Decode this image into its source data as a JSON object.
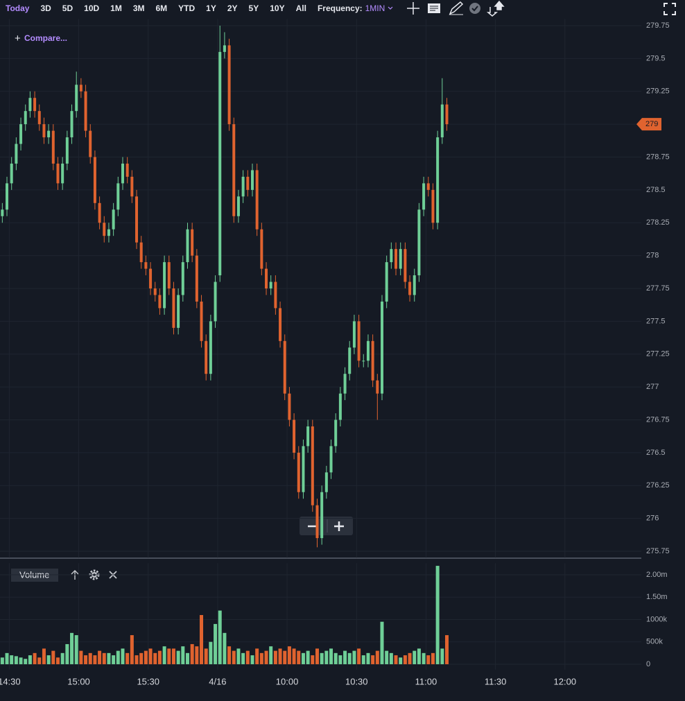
{
  "toolbar": {
    "ranges": [
      "Today",
      "3D",
      "5D",
      "10D",
      "1M",
      "3M",
      "6M",
      "YTD",
      "1Y",
      "2Y",
      "5Y",
      "10Y",
      "All"
    ],
    "frequency_label": "Frequency:",
    "frequency": "1MIN"
  },
  "compare": "Compare...",
  "chart_data": [
    {
      "type": "candlestick",
      "up_color": "#6fcf97",
      "down_color": "#e0632f",
      "grid": true,
      "xlim": [
        -4,
        273
      ],
      "ylim": [
        275.7,
        279.8
      ],
      "yticks": [
        275.75,
        276,
        276.25,
        276.5,
        276.75,
        277,
        277.25,
        277.5,
        277.75,
        278,
        278.25,
        278.5,
        278.75,
        279,
        279.25,
        279.5,
        279.75
      ],
      "last_price": 279,
      "x": [
        -3,
        -1,
        1,
        3,
        5,
        7,
        9,
        11,
        13,
        15,
        17,
        19,
        21,
        23,
        25,
        27,
        29,
        31,
        33,
        35,
        37,
        39,
        41,
        43,
        45,
        47,
        49,
        51,
        53,
        55,
        57,
        59,
        61,
        63,
        65,
        67,
        69,
        71,
        73,
        75,
        77,
        79,
        81,
        83,
        85,
        87,
        89,
        91,
        93,
        95,
        97,
        99,
        101,
        103,
        105,
        107,
        109,
        111,
        113,
        115,
        117,
        119,
        121,
        123,
        125,
        127,
        129,
        131,
        133,
        135,
        137,
        139,
        141,
        143,
        145,
        147,
        149,
        151,
        153,
        155,
        157,
        159,
        161,
        163,
        165,
        167,
        169,
        171,
        173,
        175,
        177,
        179,
        181,
        183,
        185,
        187,
        189
      ],
      "open": [
        278.3,
        278.35,
        278.55,
        278.7,
        278.85,
        279.0,
        279.1,
        279.2,
        279.1,
        279.0,
        278.9,
        278.95,
        278.7,
        278.55,
        278.7,
        278.9,
        279.1,
        279.3,
        279.25,
        278.95,
        278.75,
        278.4,
        278.25,
        278.15,
        278.2,
        278.35,
        278.55,
        278.7,
        278.6,
        278.45,
        278.1,
        277.95,
        277.9,
        277.75,
        277.7,
        277.6,
        277.95,
        277.75,
        277.45,
        277.7,
        277.95,
        278.2,
        278.0,
        277.65,
        277.35,
        277.1,
        277.5,
        277.85,
        279.55,
        279.6,
        279.0,
        278.3,
        278.45,
        278.6,
        278.5,
        278.65,
        278.2,
        277.9,
        277.75,
        277.8,
        277.6,
        277.35,
        276.95,
        276.75,
        276.5,
        276.2,
        276.55,
        276.7,
        276.1,
        275.85,
        276.2,
        276.35,
        276.55,
        276.75,
        276.95,
        277.1,
        277.3,
        277.5,
        277.2,
        277.2,
        277.35,
        277.05,
        276.95,
        277.65,
        277.95,
        278.05,
        277.9,
        278.05,
        277.8,
        277.7,
        277.85,
        278.35,
        278.55,
        278.5,
        278.25,
        278.9,
        279.15
      ],
      "high": [
        278.4,
        278.6,
        278.75,
        278.9,
        279.05,
        279.15,
        279.25,
        279.25,
        279.15,
        279.05,
        279.0,
        279.0,
        278.75,
        278.75,
        278.95,
        279.15,
        279.4,
        279.35,
        279.3,
        279.0,
        278.8,
        278.45,
        278.3,
        278.25,
        278.4,
        278.6,
        278.75,
        278.75,
        278.65,
        278.5,
        278.15,
        278.0,
        277.95,
        277.8,
        277.75,
        278.0,
        278.0,
        277.8,
        277.75,
        278.0,
        278.25,
        278.25,
        278.05,
        277.7,
        277.4,
        277.55,
        277.85,
        279.75,
        279.7,
        279.65,
        279.05,
        278.5,
        278.65,
        278.65,
        278.7,
        278.7,
        278.25,
        277.95,
        277.85,
        277.85,
        277.65,
        277.4,
        277.0,
        276.8,
        276.55,
        276.6,
        276.75,
        276.75,
        276.15,
        276.25,
        276.4,
        276.6,
        276.8,
        277.0,
        277.15,
        277.35,
        277.55,
        277.55,
        277.25,
        277.4,
        277.4,
        277.1,
        277.7,
        278.0,
        278.1,
        278.1,
        278.1,
        278.1,
        277.85,
        277.9,
        278.4,
        278.6,
        278.6,
        278.55,
        278.95,
        279.35,
        279.2
      ],
      "low": [
        278.25,
        278.3,
        278.5,
        278.65,
        278.8,
        278.95,
        279.05,
        279.05,
        278.95,
        278.85,
        278.85,
        278.65,
        278.5,
        278.5,
        278.65,
        278.85,
        279.05,
        279.2,
        278.9,
        278.7,
        278.35,
        278.2,
        278.1,
        278.1,
        278.15,
        278.3,
        278.5,
        278.55,
        278.4,
        278.05,
        277.9,
        277.85,
        277.7,
        277.65,
        277.55,
        277.55,
        277.7,
        277.4,
        277.4,
        277.65,
        277.9,
        277.95,
        277.6,
        277.3,
        277.05,
        277.05,
        277.45,
        277.8,
        279.5,
        278.95,
        278.25,
        278.25,
        278.4,
        278.45,
        278.45,
        278.15,
        277.85,
        277.7,
        277.7,
        277.55,
        277.3,
        276.9,
        276.7,
        276.45,
        276.15,
        276.15,
        276.5,
        276.05,
        275.78,
        275.8,
        276.15,
        276.3,
        276.5,
        276.7,
        276.9,
        277.05,
        277.25,
        277.15,
        277.15,
        277.15,
        277.0,
        276.75,
        276.9,
        277.6,
        277.9,
        277.85,
        277.85,
        277.75,
        277.65,
        277.65,
        277.8,
        278.3,
        278.45,
        278.2,
        278.2,
        278.85,
        278.95
      ],
      "close": [
        278.35,
        278.55,
        278.7,
        278.85,
        279.0,
        279.1,
        279.2,
        279.1,
        279.0,
        278.9,
        278.95,
        278.7,
        278.55,
        278.7,
        278.9,
        279.1,
        279.3,
        279.25,
        278.95,
        278.75,
        278.4,
        278.25,
        278.15,
        278.2,
        278.35,
        278.55,
        278.7,
        278.6,
        278.45,
        278.1,
        277.95,
        277.9,
        277.75,
        277.7,
        277.6,
        277.95,
        277.75,
        277.45,
        277.7,
        277.95,
        278.2,
        278.0,
        277.65,
        277.35,
        277.1,
        277.5,
        277.8,
        279.55,
        279.6,
        279.0,
        278.3,
        278.45,
        278.6,
        278.5,
        278.65,
        278.2,
        277.9,
        277.75,
        277.8,
        277.6,
        277.35,
        276.95,
        276.75,
        276.5,
        276.2,
        276.55,
        276.7,
        276.1,
        275.85,
        276.2,
        276.35,
        276.55,
        276.75,
        276.95,
        277.1,
        277.3,
        277.5,
        277.2,
        277.2,
        277.35,
        277.05,
        276.95,
        277.65,
        277.95,
        278.05,
        277.9,
        278.05,
        277.8,
        277.7,
        277.85,
        278.35,
        278.55,
        278.5,
        278.25,
        278.9,
        279.15,
        279.0
      ]
    },
    {
      "type": "bar",
      "title": "Volume",
      "grid": true,
      "xlim": [
        -4,
        273
      ],
      "ylim": [
        -120000,
        2260000
      ],
      "xticks": [
        {
          "value": 0,
          "label": "14:30"
        },
        {
          "value": 30,
          "label": "15:00"
        },
        {
          "value": 60,
          "label": "15:30"
        },
        {
          "value": 90,
          "label": "4/16"
        },
        {
          "value": 120,
          "label": "10:00"
        },
        {
          "value": 150,
          "label": "10:30"
        },
        {
          "value": 180,
          "label": "11:00"
        },
        {
          "value": 210,
          "label": "11:30"
        },
        {
          "value": 240,
          "label": "12:00"
        }
      ],
      "yticks": [
        0,
        {
          "value": 500000,
          "label": "500k"
        },
        {
          "value": 1000000,
          "label": "1000k"
        },
        {
          "value": 1500000,
          "label": "1.50m"
        },
        {
          "value": 2000000,
          "label": "2.00m"
        }
      ],
      "x": [
        -3,
        -1,
        1,
        3,
        5,
        7,
        9,
        11,
        13,
        15,
        17,
        19,
        21,
        23,
        25,
        27,
        29,
        31,
        33,
        35,
        37,
        39,
        41,
        43,
        45,
        47,
        49,
        51,
        53,
        55,
        57,
        59,
        61,
        63,
        65,
        67,
        69,
        71,
        73,
        75,
        77,
        79,
        81,
        83,
        85,
        87,
        89,
        91,
        93,
        95,
        97,
        99,
        101,
        103,
        105,
        107,
        109,
        111,
        113,
        115,
        117,
        119,
        121,
        123,
        125,
        127,
        129,
        131,
        133,
        135,
        137,
        139,
        141,
        143,
        145,
        147,
        149,
        151,
        153,
        155,
        157,
        159,
        161,
        163,
        165,
        167,
        169,
        171,
        173,
        175,
        177,
        179,
        181,
        183,
        185,
        187,
        189
      ],
      "values": [
        150000,
        250000,
        200000,
        180000,
        150000,
        120000,
        200000,
        250000,
        150000,
        350000,
        200000,
        300000,
        150000,
        250000,
        450000,
        700000,
        650000,
        300000,
        200000,
        250000,
        200000,
        300000,
        250000,
        250000,
        200000,
        300000,
        350000,
        250000,
        650000,
        200000,
        250000,
        300000,
        350000,
        250000,
        300000,
        400000,
        350000,
        350000,
        300000,
        400000,
        250000,
        450000,
        400000,
        1100000,
        350000,
        500000,
        900000,
        1200000,
        700000,
        400000,
        300000,
        350000,
        250000,
        300000,
        200000,
        350000,
        250000,
        300000,
        400000,
        300000,
        350000,
        300000,
        400000,
        350000,
        300000,
        250000,
        300000,
        200000,
        350000,
        250000,
        300000,
        350000,
        250000,
        200000,
        300000,
        250000,
        300000,
        350000,
        200000,
        250000,
        200000,
        300000,
        950000,
        300000,
        250000,
        200000,
        150000,
        200000,
        250000,
        300000,
        350000,
        250000,
        200000,
        250000,
        2200000,
        350000,
        650000
      ]
    }
  ]
}
